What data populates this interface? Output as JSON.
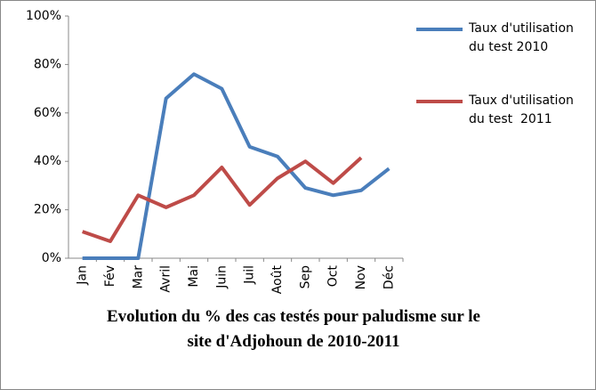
{
  "chart_data": {
    "type": "line",
    "title": "Evolution du % des cas testés pour paludisme sur le site d'Adjohoun de 2010-2011",
    "categories": [
      "Jan",
      "Fév",
      "Mar",
      "Avril",
      "Mai",
      "Juin",
      "Juil",
      "Août",
      "Sep",
      "Oct",
      "Nov",
      "Déc"
    ],
    "series": [
      {
        "name": "Taux d'utilisation du test 2010",
        "color": "#4a7ebb",
        "values": [
          0,
          0,
          0,
          66,
          76,
          70,
          46,
          42,
          29,
          26,
          28,
          37
        ]
      },
      {
        "name": "Taux d'utilisation du test  2011",
        "color": "#be4b48",
        "values": [
          11,
          7,
          26,
          21,
          26,
          37.5,
          22,
          33,
          40,
          31,
          41.5,
          null
        ]
      }
    ],
    "ylim": [
      0,
      100
    ],
    "yticks": [
      {
        "value": 0,
        "label": "0%"
      },
      {
        "value": 20,
        "label": "20%"
      },
      {
        "value": 40,
        "label": "40%"
      },
      {
        "value": 60,
        "label": "60%"
      },
      {
        "value": 80,
        "label": "80%"
      },
      {
        "value": 100,
        "label": "100%"
      }
    ],
    "grid": false,
    "legend": "right"
  }
}
